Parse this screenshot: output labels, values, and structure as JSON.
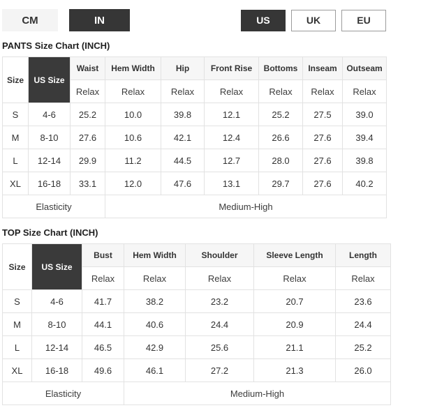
{
  "unit_toggle": {
    "cm_label": "CM",
    "in_label": "IN",
    "active": "IN"
  },
  "region_toggle": {
    "us_label": "US",
    "uk_label": "UK",
    "eu_label": "EU",
    "active": "US"
  },
  "colors": {
    "active_button_bg": "#363636",
    "inactive_button_bg": "#f4f4f4",
    "header_cell_bg": "#f6f6f6",
    "dark_header_cell_bg": "#3a3a3a",
    "table_border": "#e2e2e2"
  },
  "pants_chart": {
    "title": "PANTS Size Chart (INCH)",
    "size_header": "Size",
    "us_size_header": "US Size",
    "fit_label": "Relax",
    "columns": [
      "Waist",
      "Hem Width",
      "Hip",
      "Front Rise",
      "Bottoms",
      "Inseam",
      "Outseam"
    ],
    "rows": [
      {
        "size": "S",
        "us_size": "4-6",
        "values": [
          "25.2",
          "10.0",
          "39.8",
          "12.1",
          "25.2",
          "27.5",
          "39.0"
        ]
      },
      {
        "size": "M",
        "us_size": "8-10",
        "values": [
          "27.6",
          "10.6",
          "42.1",
          "12.4",
          "26.6",
          "27.6",
          "39.4"
        ]
      },
      {
        "size": "L",
        "us_size": "12-14",
        "values": [
          "29.9",
          "11.2",
          "44.5",
          "12.7",
          "28.0",
          "27.6",
          "39.8"
        ]
      },
      {
        "size": "XL",
        "us_size": "16-18",
        "values": [
          "33.1",
          "12.0",
          "47.6",
          "13.1",
          "29.7",
          "27.6",
          "40.2"
        ]
      }
    ],
    "elasticity_label": "Elasticity",
    "elasticity_value": "Medium-High"
  },
  "top_chart": {
    "title": "TOP Size Chart (INCH)",
    "size_header": "Size",
    "us_size_header": "US Size",
    "fit_label": "Relax",
    "columns": [
      "Bust",
      "Hem Width",
      "Shoulder",
      "Sleeve Length",
      "Length"
    ],
    "rows": [
      {
        "size": "S",
        "us_size": "4-6",
        "values": [
          "41.7",
          "38.2",
          "23.2",
          "20.7",
          "23.6"
        ]
      },
      {
        "size": "M",
        "us_size": "8-10",
        "values": [
          "44.1",
          "40.6",
          "24.4",
          "20.9",
          "24.4"
        ]
      },
      {
        "size": "L",
        "us_size": "12-14",
        "values": [
          "46.5",
          "42.9",
          "25.6",
          "21.1",
          "25.2"
        ]
      },
      {
        "size": "XL",
        "us_size": "16-18",
        "values": [
          "49.6",
          "46.1",
          "27.2",
          "21.3",
          "26.0"
        ]
      }
    ],
    "elasticity_label": "Elasticity",
    "elasticity_value": "Medium-High"
  }
}
